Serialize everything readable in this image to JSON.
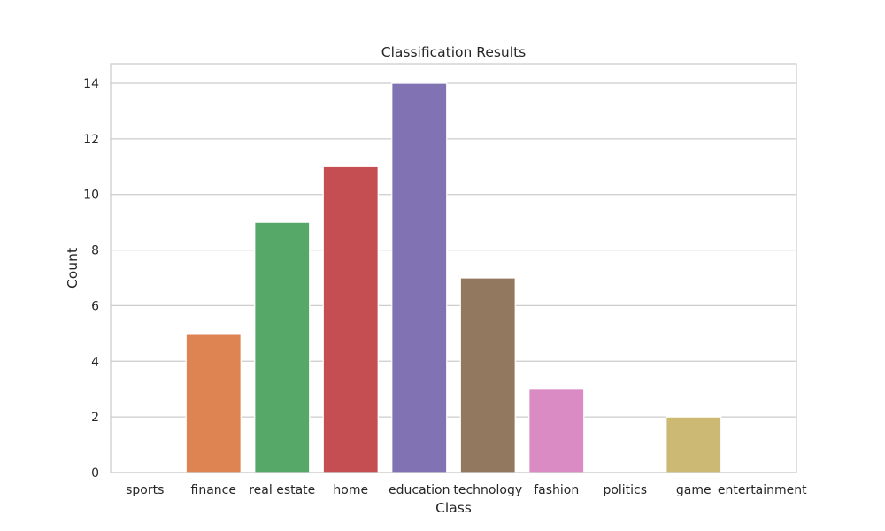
{
  "chart_data": {
    "type": "bar",
    "title": "Classification Results",
    "xlabel": "Class",
    "ylabel": "Count",
    "categories": [
      "sports",
      "finance",
      "real estate",
      "home",
      "education",
      "technology",
      "fashion",
      "politics",
      "game",
      "entertainment"
    ],
    "values": [
      0,
      5,
      9,
      11,
      14,
      7,
      3,
      0,
      2,
      0
    ],
    "colors": [
      "#4c72b0",
      "#dd8452",
      "#55a868",
      "#c44e52",
      "#8172b3",
      "#937860",
      "#da8bc3",
      "#8c8c8c",
      "#ccb974",
      "#64b5cd"
    ],
    "yticks": [
      0,
      2,
      4,
      6,
      8,
      10,
      12,
      14
    ],
    "ylim": [
      0,
      14.7
    ],
    "grid": true,
    "legend": "none"
  }
}
